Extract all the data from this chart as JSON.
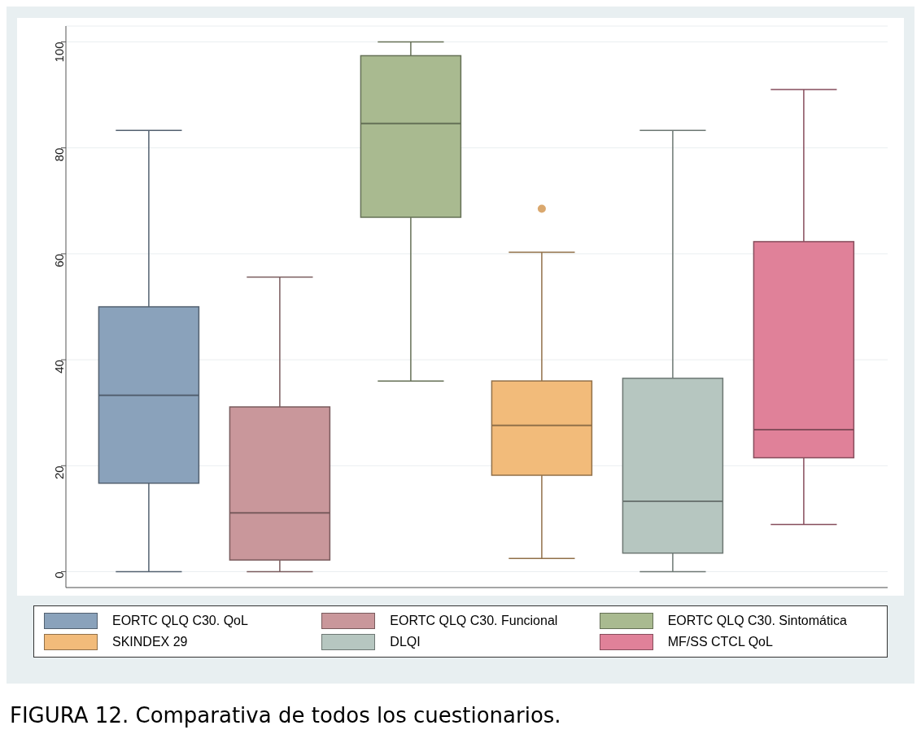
{
  "chart_data": {
    "type": "box",
    "categories": [
      null
    ],
    "series": [
      {
        "name": "EORTC QLQ C30. QoL",
        "color": "#8aa2bb",
        "boxes": [
          {
            "low": 0,
            "q1": 16.7,
            "median": 33.3,
            "q3": 50,
            "high": 83.3
          }
        ]
      },
      {
        "name": "EORTC QLQ C30. Funcional",
        "color": "#c9979b",
        "boxes": [
          {
            "low": 0,
            "q1": 2.2,
            "median": 11.1,
            "q3": 31.1,
            "high": 55.6
          }
        ]
      },
      {
        "name": "EORTC QLQ C30. Sintomática",
        "color": "#a9ba90",
        "boxes": [
          {
            "low": 36,
            "q1": 66.9,
            "median": 84.6,
            "q3": 97.4,
            "high": 100
          }
        ]
      },
      {
        "name": "SKINDEX 29",
        "color": "#f2bb7a",
        "boxes": [
          {
            "low": 2.5,
            "q1": 18.2,
            "median": 27.6,
            "q3": 36,
            "high": 60.3,
            "outliers": [
              68.5
            ]
          }
        ]
      },
      {
        "name": "DLQI",
        "color": "#b6c6c0",
        "boxes": [
          {
            "low": 0,
            "q1": 3.5,
            "median": 13.3,
            "q3": 36.5,
            "high": 83.3
          }
        ]
      },
      {
        "name": "MF/SS CTCL QoL",
        "color": "#e08199",
        "boxes": [
          {
            "low": 8.9,
            "q1": 21.5,
            "median": 26.8,
            "q3": 62.3,
            "high": 91
          }
        ]
      }
    ],
    "ylim": [
      -3,
      103
    ],
    "yticks": [
      0,
      20,
      40,
      60,
      80,
      100
    ],
    "grid": "y",
    "legend": "bottom",
    "tick_labels": "y",
    "annotations": [
      "FIGURA 12. Comparativa de todos los cuestionarios."
    ]
  }
}
